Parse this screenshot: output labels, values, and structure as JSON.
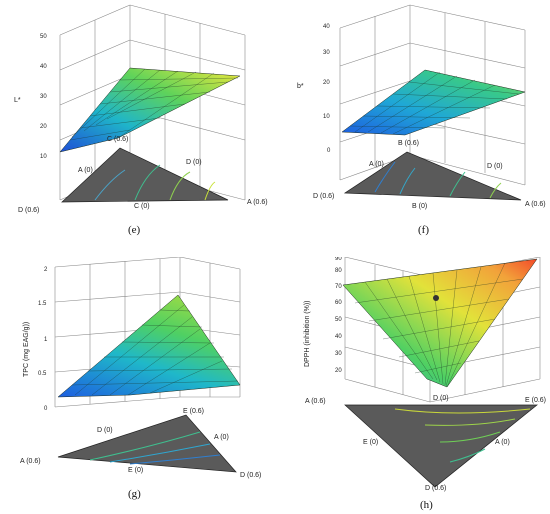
{
  "chart_data": [
    {
      "type": "surface",
      "panel": "(e)",
      "zlabel": "L*",
      "z_ticks": [
        "10",
        "20",
        "30",
        "40",
        "50"
      ],
      "vertex_labels": [
        "D (0.6)",
        "A (0.6)",
        "C (0.6)"
      ],
      "mid_labels": [
        "A (0)",
        "C (0)",
        "D (0)"
      ],
      "surface_corner_values": {
        "D (0.6)": 12,
        "A (0.6)": 35,
        "C (0.6)": 22
      }
    },
    {
      "type": "surface",
      "panel": "(f)",
      "zlabel": "b*",
      "z_ticks": [
        "0",
        "10",
        "20",
        "30",
        "40"
      ],
      "vertex_labels": [
        "D (0.6)",
        "A (0.6)",
        "B (0.6)"
      ],
      "mid_labels": [
        "A (0)",
        "B (0)",
        "D (0)"
      ],
      "surface_corner_values": {
        "D (0.6)": 5,
        "A (0.6)": 20,
        "B (0.6)": 10
      }
    },
    {
      "type": "surface",
      "panel": "(g)",
      "zlabel": "TPC (mg EAG/g))",
      "z_ticks": [
        "0",
        "0.5",
        "1",
        "1.5",
        "2"
      ],
      "vertex_labels": [
        "A (0.6)",
        "D (0.6)",
        "E (0.6)"
      ],
      "mid_labels": [
        "D (0)",
        "E (0)",
        "A (0)"
      ],
      "surface_corner_values": {
        "A (0.6)": 0.3,
        "D (0.6)": 0.2,
        "E (0.6)": 1.6
      }
    },
    {
      "type": "surface",
      "panel": "(h)",
      "zlabel": "DPPH (inhibition (%))",
      "z_ticks": [
        "20",
        "30",
        "40",
        "50",
        "60",
        "70",
        "80",
        "90"
      ],
      "vertex_labels": [
        "A (0.6)",
        "E (0.6)",
        "D (0.6)"
      ],
      "mid_labels": [
        "D (0)",
        "E (0)",
        "A (0)"
      ],
      "surface_corner_values": {
        "A (0.6)": 70,
        "E (0.6)": 88,
        "D (0.6)": 28
      }
    }
  ]
}
